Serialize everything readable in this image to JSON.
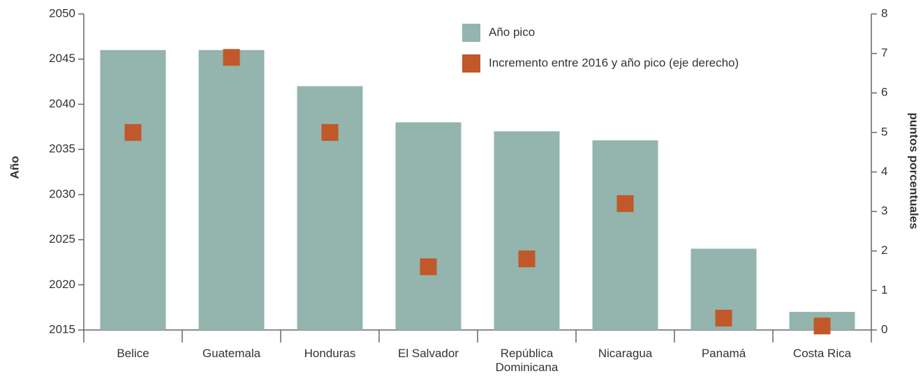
{
  "chart_data": {
    "type": "bar",
    "categories": [
      "Belice",
      "Guatemala",
      "Honduras",
      "El Salvador",
      "República Dominicana",
      "Nicaragua",
      "Panamá",
      "Costa Rica"
    ],
    "series": [
      {
        "name": "Año pico",
        "type": "bar",
        "color": "#94b4ae",
        "values": [
          2046,
          2046,
          2042,
          2038,
          2037,
          2036,
          2024,
          2017
        ]
      },
      {
        "name": "Incremento entre 2016 y año pico (eje derecho)",
        "type": "marker",
        "axis": "y2",
        "color": "#c0582a",
        "values": [
          5,
          6.9,
          5,
          1.6,
          1.8,
          3.2,
          0.3,
          0.1
        ]
      }
    ],
    "ylabel": "Año",
    "y2label": "puntos porcentuales",
    "ylim": [
      2015,
      2050
    ],
    "yticks": [
      2015,
      2020,
      2025,
      2030,
      2035,
      2040,
      2045,
      2050
    ],
    "y2lim": [
      0,
      8
    ],
    "y2ticks": [
      0,
      1,
      2,
      3,
      4,
      5,
      6,
      7,
      8
    ]
  }
}
